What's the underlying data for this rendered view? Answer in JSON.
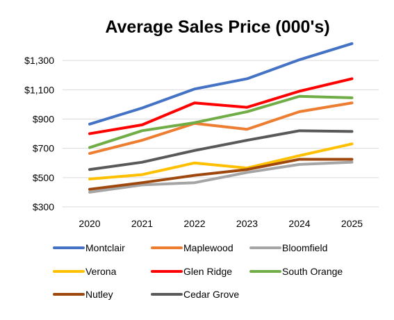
{
  "chart_data": {
    "type": "line",
    "title": "Average Sales Price (000's)",
    "xlabel": "",
    "ylabel": "",
    "categories": [
      "2020",
      "2021",
      "2022",
      "2023",
      "2024",
      "2025"
    ],
    "ylim": [
      300,
      1400
    ],
    "yticks": [
      300,
      500,
      700,
      900,
      1100,
      1300
    ],
    "ytick_labels": [
      "$300",
      "$500",
      "$700",
      "$900",
      "$1,100",
      "$1,300"
    ],
    "grid": true,
    "legend_position": "bottom",
    "series": [
      {
        "name": "Montclair",
        "color": "#4472c4",
        "values": [
          865,
          975,
          1105,
          1175,
          1305,
          1415
        ]
      },
      {
        "name": "Maplewood",
        "color": "#ed7d31",
        "values": [
          665,
          755,
          870,
          830,
          950,
          1010
        ]
      },
      {
        "name": "Bloomfield",
        "color": "#a5a5a5",
        "values": [
          400,
          450,
          465,
          535,
          590,
          605
        ]
      },
      {
        "name": "Verona",
        "color": "#ffc000",
        "values": [
          490,
          520,
          600,
          565,
          650,
          730
        ]
      },
      {
        "name": "Glen Ridge",
        "color": "#ff0000",
        "values": [
          800,
          860,
          1010,
          980,
          1090,
          1175
        ]
      },
      {
        "name": "South Orange",
        "color": "#70ad47",
        "values": [
          705,
          820,
          875,
          950,
          1055,
          1045
        ]
      },
      {
        "name": "Nutley",
        "color": "#9e480e",
        "values": [
          420,
          465,
          515,
          555,
          625,
          625
        ]
      },
      {
        "name": "Cedar Grove",
        "color": "#595959",
        "values": [
          555,
          605,
          685,
          755,
          820,
          815
        ]
      }
    ]
  }
}
